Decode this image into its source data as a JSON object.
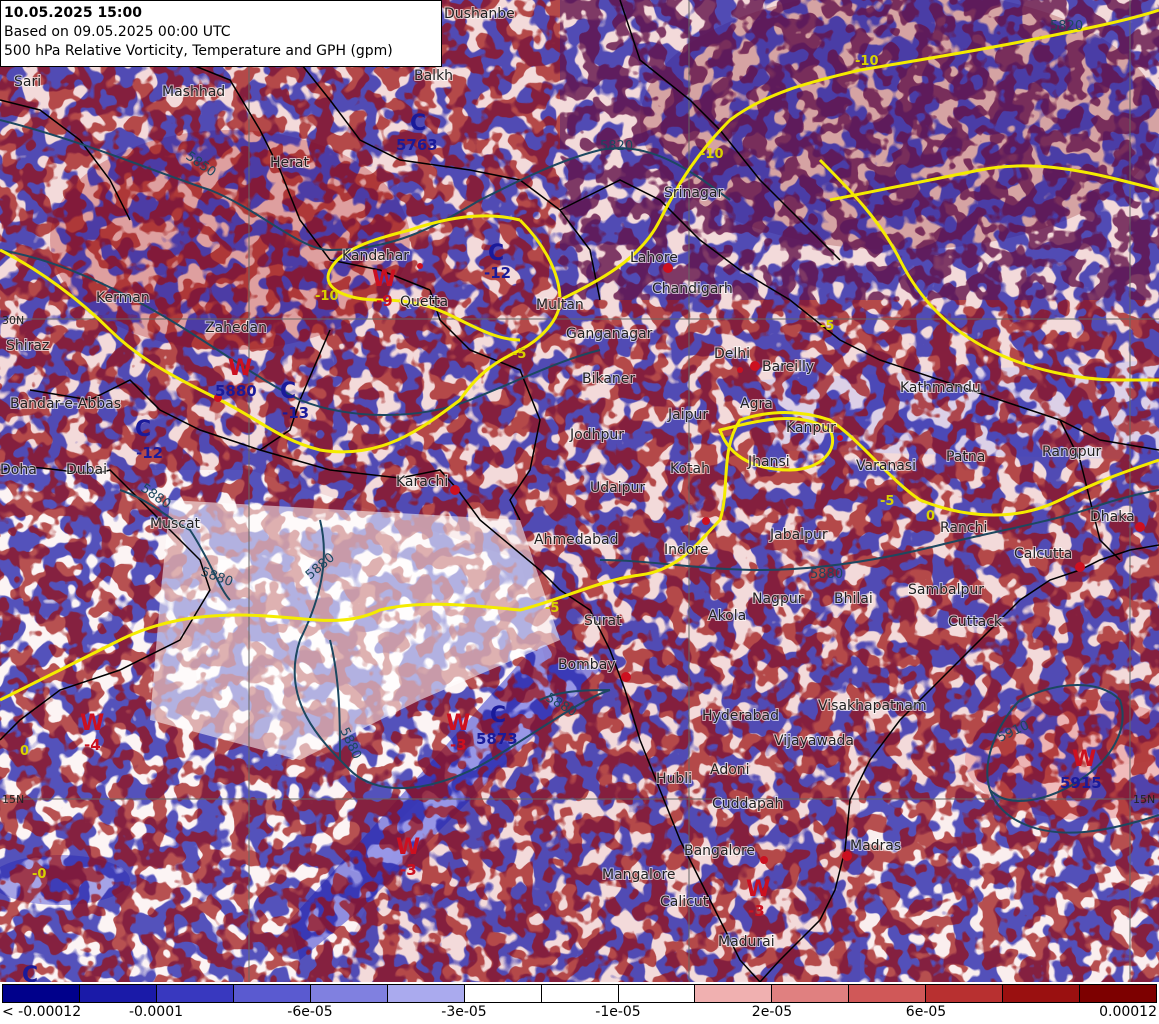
{
  "header": {
    "valid_time": "10.05.2025 15:00",
    "based_on": "Based on 09.05.2025 00:00 UTC",
    "field": "500 hPa Relative Vorticity, Temperature and GPH (gpm)"
  },
  "places": {
    "dushanbe": "Dushanbe",
    "sari": "Sari",
    "mashhad": "Mashhad",
    "balkh": "Balkh",
    "herat": "Herat",
    "kandahar": "Kandahar",
    "quetta": "Quetta",
    "multan": "Multan",
    "zahedan": "Zahedan",
    "shiraz": "Shiraz",
    "kerman": "Kerman",
    "bandar_abbas": "Bandar-e-Abbas",
    "doha": "Doha",
    "dubai": "Dubai",
    "muscat": "Muscat",
    "karachi": "Karachi",
    "srinagar": "Srinagar",
    "lahore": "Lahore",
    "chandigarh": "Chandigarh",
    "ganganagar": "Ganganagar",
    "bikaner": "Bikaner",
    "delhi": "Delhi",
    "bareilly": "Bareilly",
    "jodhpur": "Jodhpur",
    "jaipur": "Jaipur",
    "agra": "Agra",
    "kanpur": "Kanpur",
    "jhansi": "Jhansi",
    "varanasi": "Varanasi",
    "patna": "Patna",
    "kathmandu": "Kathmandu",
    "rangpur": "Rangpur",
    "kotah": "Kotah",
    "udaipur": "Udaipur",
    "ahmedabad": "Ahmedabad",
    "indore": "Indore",
    "jabalpur": "Jabalpur",
    "ranchi": "Ranchi",
    "dhaka": "Dhaka",
    "calcutta": "Calcutta",
    "nagpur": "Nagpur",
    "bhilai": "Bhilai",
    "akola": "Akola",
    "surat": "Surat",
    "sambalpur": "Sambalpur",
    "cuttack": "Cuttack",
    "bombay": "Bombay",
    "hyderabad": "Hyderabad",
    "visakhapatnam": "Visakhapatnam",
    "vijayawada": "Vijayawada",
    "hubli": "Hubli",
    "adoni": "Adoni",
    "cuddapah": "Cuddapah",
    "bangalore": "Bangalore",
    "madras": "Madras",
    "mangalore": "Mangalore",
    "calicut": "Calicut",
    "madurai": "Madurai"
  },
  "grid_labels": {
    "lat_30": "30N",
    "lat_15_left": "15N",
    "lat_15_right": "15N"
  },
  "centers": [
    {
      "letter": "C",
      "value": "5763"
    },
    {
      "letter": "C",
      "value": "-12"
    },
    {
      "letter": "W",
      "value": "-9"
    },
    {
      "letter": "W",
      "value": "5880"
    },
    {
      "letter": "C",
      "value": "-13"
    },
    {
      "letter": "C",
      "value": "-12"
    },
    {
      "letter": "W",
      "value": "-4"
    },
    {
      "letter": "W",
      "value": "-3"
    },
    {
      "letter": "C",
      "value": "5873"
    },
    {
      "letter": "W",
      "value": "-3"
    },
    {
      "letter": "W",
      "value": "-3"
    },
    {
      "letter": "W",
      "value": "5915"
    },
    {
      "letter": "C",
      "value": ""
    }
  ],
  "contour_labels": {
    "gph_5850": "5850",
    "gph_5880_a": "5880",
    "gph_5880_b": "5880",
    "gph_5880_c": "5880",
    "gph_5880_d": "5880",
    "gph_5880_e": "5880",
    "gph_5880_f": "5880",
    "gph_5910": "5910",
    "gph_5820_a": "5820",
    "gph_5820_b": "5820",
    "temp_m10_a": "-10",
    "temp_m10_b": "-10",
    "temp_m10_c": "-10",
    "temp_m5_a": "-5",
    "temp_m5_b": "-5",
    "temp_m5_c": "-5",
    "temp_m5_d": "-5",
    "temp_0_a": "0",
    "temp_0_b": "0",
    "temp_0_c": "-0"
  },
  "colorbar": {
    "colors": [
      "#00008b",
      "#1a1aa8",
      "#3838bf",
      "#5a5ad0",
      "#8080e0",
      "#aaaaee",
      "#ffffff",
      "#ffffff",
      "#ffffff",
      "#f0b0b0",
      "#e08080",
      "#d05858",
      "#b83030",
      "#9a1010",
      "#7d0000"
    ],
    "labels": [
      "< -0.00012",
      "-0.0001",
      "-6e-05",
      "-3e-05",
      "-1e-05",
      "2e-05",
      "6e-05",
      "0.00012"
    ]
  },
  "colors": {
    "warm": "#cc1020",
    "cold": "#1a1a9a",
    "gph_contour": "#1c4860",
    "temp_contour": "#f4ec00"
  }
}
